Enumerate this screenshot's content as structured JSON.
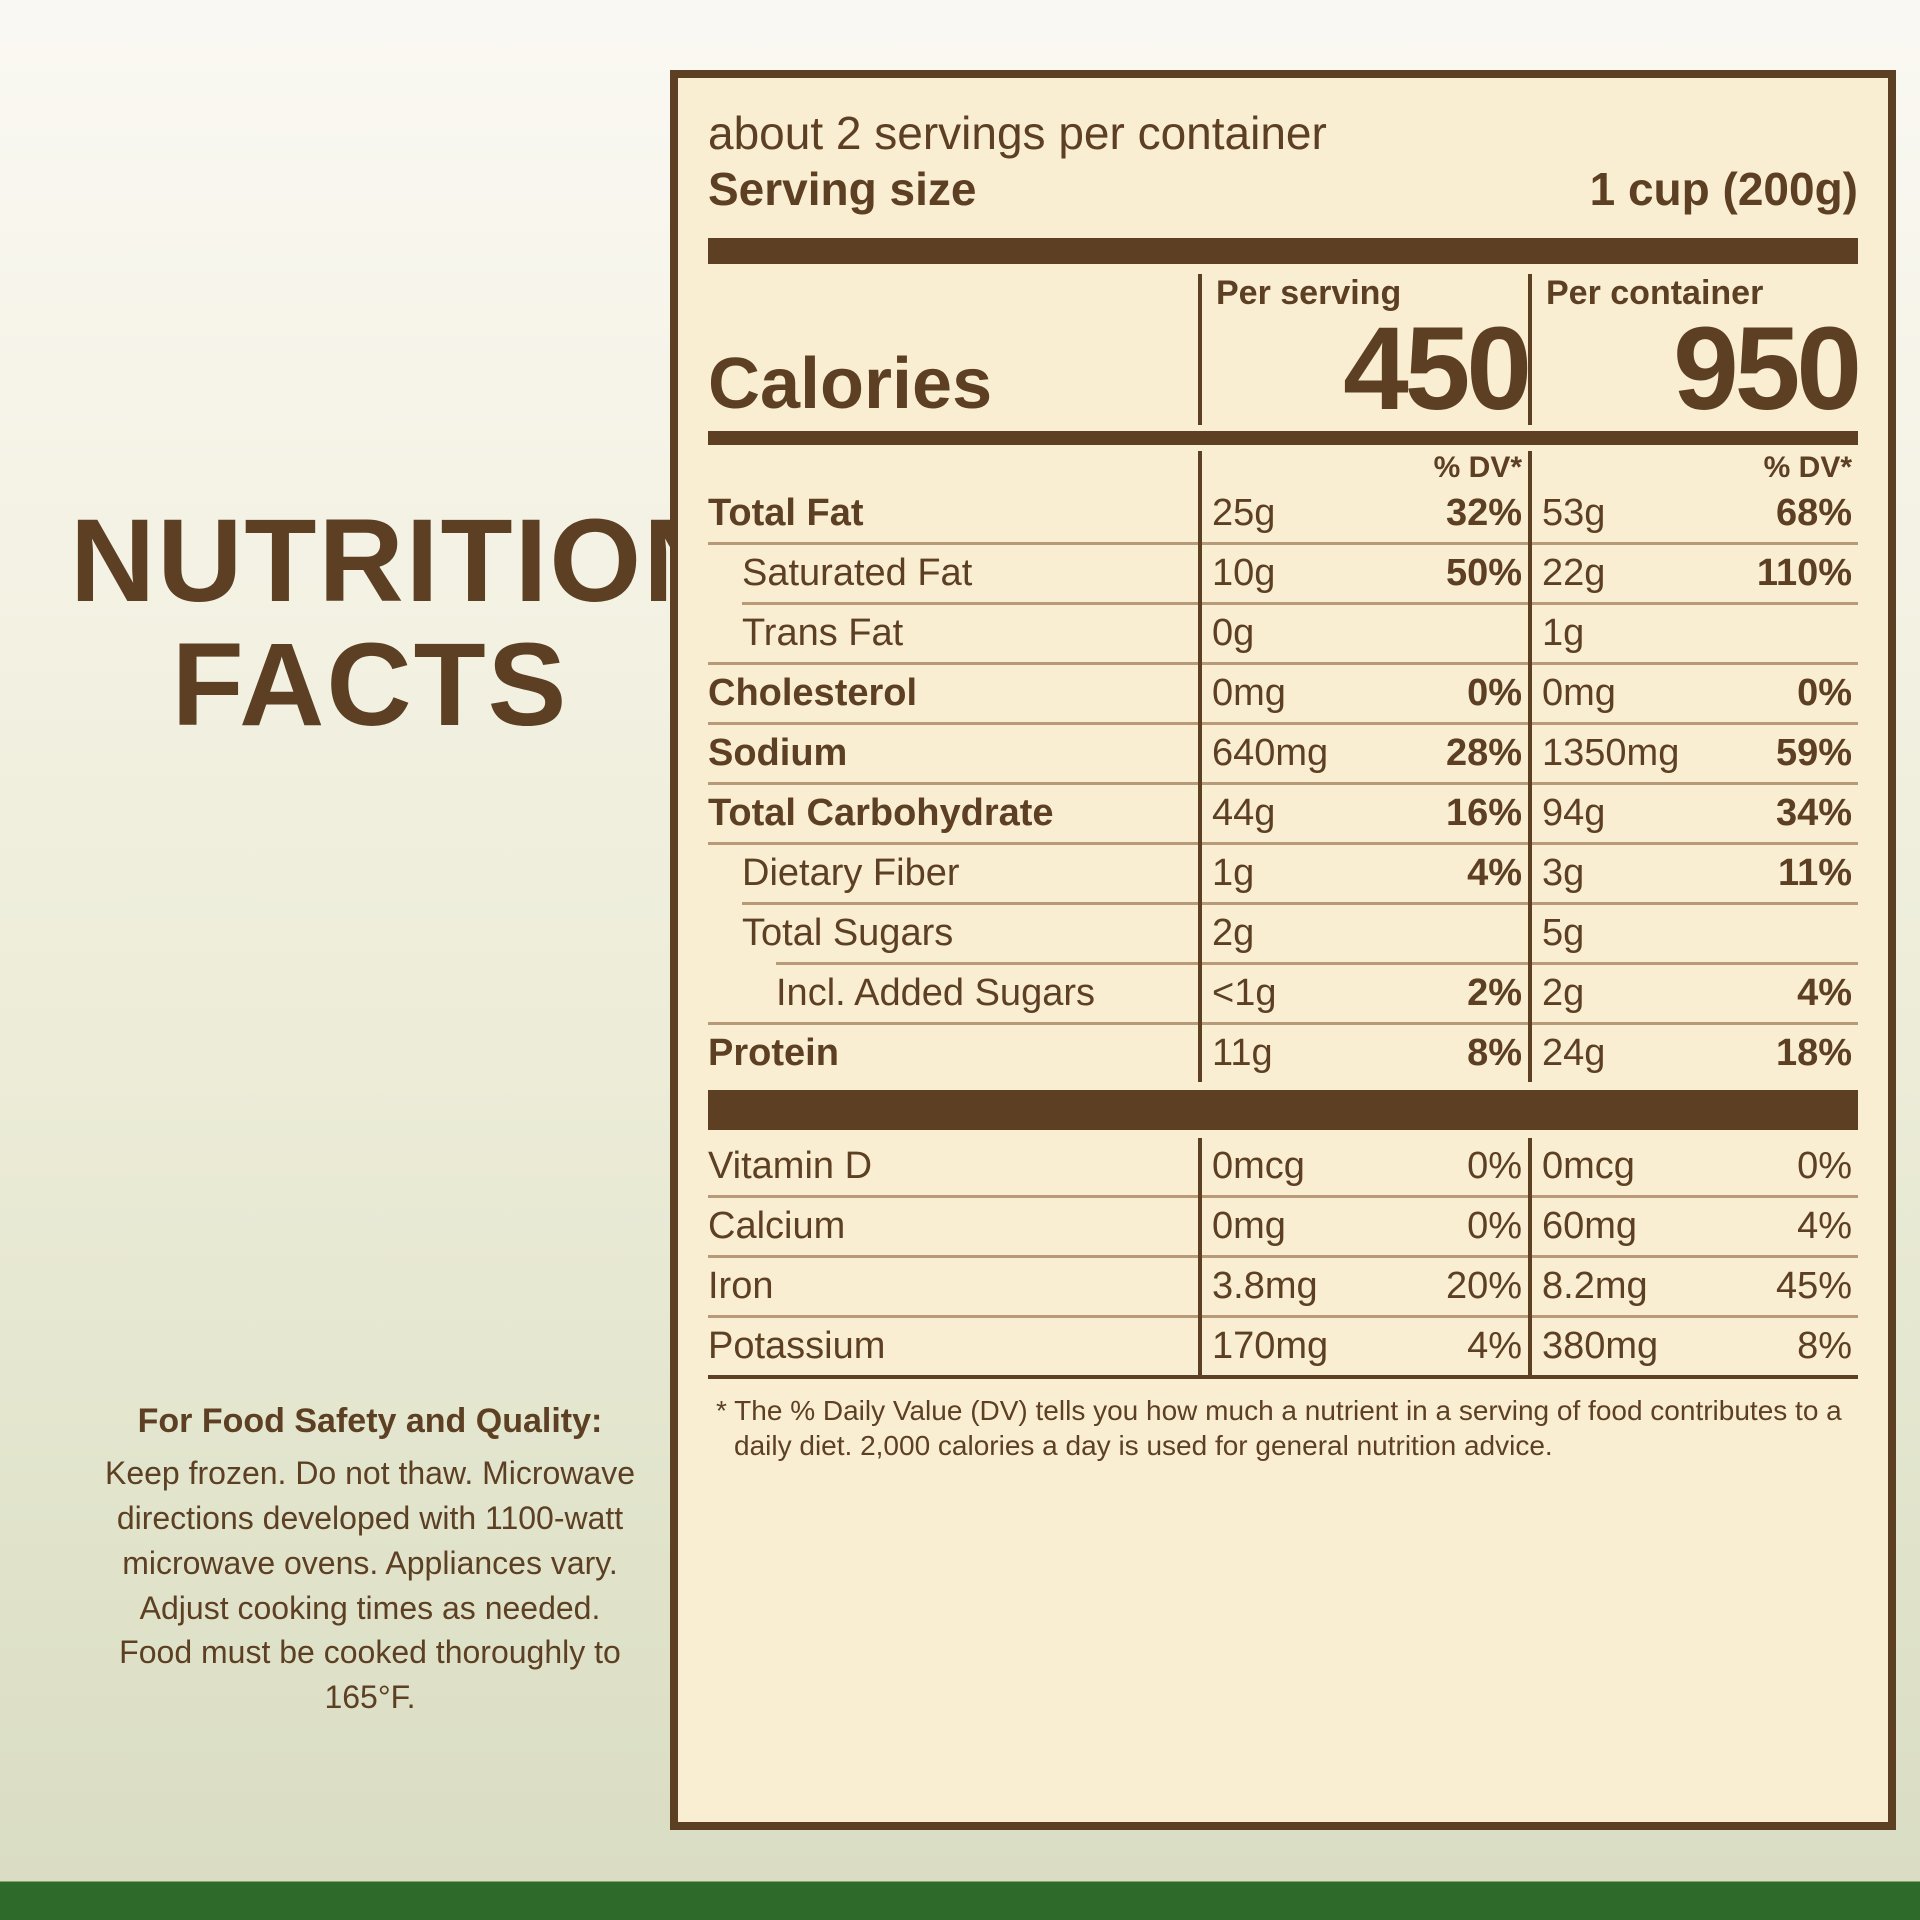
{
  "colors": {
    "ink": "#5d4024",
    "panel_bg": "#faeed2",
    "rule": "#b89a78",
    "green_bar": "#2e6b2a"
  },
  "title_line1": "NUTRITION",
  "title_line2": "FACTS",
  "safety": {
    "heading": "For Food Safety and Quality:",
    "body": "Keep frozen. Do not thaw. Microwave directions developed with 1100-watt microwave ovens. Appliances vary. Adjust cooking times as needed. Food must be cooked thoroughly to 165°F."
  },
  "header": {
    "servings_per_container": "about 2 servings per container",
    "serving_size_label": "Serving size",
    "serving_size_value": "1 cup (200g)"
  },
  "calories": {
    "label": "Calories",
    "per_serving_label": "Per serving",
    "per_container_label": "Per container",
    "per_serving": "450",
    "per_container": "950"
  },
  "dv_label": "% DV*",
  "nutrients": [
    {
      "label": "Total Fat",
      "bold": true,
      "indent": 0,
      "s_amt": "25g",
      "s_dv": "32%",
      "c_amt": "53g",
      "c_dv": "68%",
      "rule": "full"
    },
    {
      "label": "Saturated Fat",
      "indent": 1,
      "s_amt": "10g",
      "s_dv": "50%",
      "c_amt": "22g",
      "c_dv": "110%",
      "rule": "partial"
    },
    {
      "label": "Trans Fat",
      "indent": 1,
      "s_amt": "0g",
      "s_dv": "",
      "c_amt": "1g",
      "c_dv": "",
      "rule": "full"
    },
    {
      "label": "Cholesterol",
      "bold": true,
      "indent": 0,
      "s_amt": "0mg",
      "s_dv": "0%",
      "c_amt": "0mg",
      "c_dv": "0%",
      "rule": "full"
    },
    {
      "label": "Sodium",
      "bold": true,
      "indent": 0,
      "s_amt": "640mg",
      "s_dv": "28%",
      "c_amt": "1350mg",
      "c_dv": "59%",
      "rule": "full"
    },
    {
      "label": "Total Carbohydrate",
      "bold": true,
      "indent": 0,
      "s_amt": "44g",
      "s_dv": "16%",
      "c_amt": "94g",
      "c_dv": "34%",
      "rule": "full"
    },
    {
      "label": "Dietary Fiber",
      "indent": 1,
      "s_amt": "1g",
      "s_dv": "4%",
      "c_amt": "3g",
      "c_dv": "11%",
      "rule": "partial"
    },
    {
      "label": "Total Sugars",
      "indent": 1,
      "s_amt": "2g",
      "s_dv": "",
      "c_amt": "5g",
      "c_dv": "",
      "rule": "partial2"
    },
    {
      "label": "Incl. Added Sugars",
      "indent": 2,
      "s_amt": "<1g",
      "s_dv": "2%",
      "c_amt": "2g",
      "c_dv": "4%",
      "rule": "full"
    },
    {
      "label": "Protein",
      "bold": true,
      "indent": 0,
      "s_amt": "11g",
      "s_dv": "8%",
      "c_amt": "24g",
      "c_dv": "18%",
      "rule": "none"
    }
  ],
  "micronutrients": [
    {
      "label": "Vitamin D",
      "s_amt": "0mcg",
      "s_dv": "0%",
      "c_amt": "0mcg",
      "c_dv": "0%"
    },
    {
      "label": "Calcium",
      "s_amt": "0mg",
      "s_dv": "0%",
      "c_amt": "60mg",
      "c_dv": "4%"
    },
    {
      "label": "Iron",
      "s_amt": "3.8mg",
      "s_dv": "20%",
      "c_amt": "8.2mg",
      "c_dv": "45%"
    },
    {
      "label": "Potassium",
      "s_amt": "170mg",
      "s_dv": "4%",
      "c_amt": "380mg",
      "c_dv": "8%"
    }
  ],
  "footnote": "* The % Daily Value (DV) tells you how much a nutrient in a serving of food contributes to a daily diet. 2,000 calories a day is used for general nutrition advice."
}
